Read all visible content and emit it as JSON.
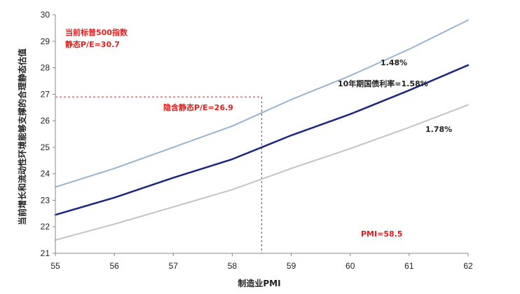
{
  "chart_data": {
    "type": "line",
    "xlabel": "制造业PMI",
    "ylabel": "当前增长和流动性环境能够支撑的合理静态估值",
    "xlim": [
      55,
      62
    ],
    "ylim": [
      21,
      30
    ],
    "x_ticks": [
      "55",
      "56",
      "57",
      "58",
      "59",
      "60",
      "61",
      "62"
    ],
    "y_ticks": [
      "21",
      "22",
      "23",
      "24",
      "25",
      "26",
      "27",
      "28",
      "29",
      "30"
    ],
    "grid": false,
    "series": [
      {
        "name": "1.48%",
        "color": "#9ab3d0",
        "points": [
          [
            55,
            23.5
          ],
          [
            56,
            24.2
          ],
          [
            57,
            25.0
          ],
          [
            58,
            25.8
          ],
          [
            59,
            26.8
          ],
          [
            60,
            27.7
          ],
          [
            61,
            28.7
          ],
          [
            62,
            29.8
          ]
        ]
      },
      {
        "name": "10年期国债利率=1.58%",
        "color": "#1d2680",
        "points": [
          [
            55,
            22.45
          ],
          [
            56,
            23.1
          ],
          [
            57,
            23.85
          ],
          [
            58,
            24.55
          ],
          [
            59,
            25.45
          ],
          [
            60,
            26.25
          ],
          [
            61,
            27.15
          ],
          [
            62,
            28.1
          ]
        ]
      },
      {
        "name": "1.78%",
        "color": "#c4c4c4",
        "points": [
          [
            55,
            21.5
          ],
          [
            56,
            22.1
          ],
          [
            57,
            22.75
          ],
          [
            58,
            23.4
          ],
          [
            59,
            24.2
          ],
          [
            60,
            24.95
          ],
          [
            61,
            25.75
          ],
          [
            62,
            26.6
          ]
        ]
      }
    ],
    "reference_lines": {
      "pmi_x": 58.5,
      "implied_pe_y": 26.9,
      "color": "#e02020"
    },
    "annotations": {
      "current_pe_line1": "当前标普500指数",
      "current_pe_line2": "静态P/E=30.7",
      "implied_pe": "隐含静态P/E=26.9",
      "pmi": "PMI=58.5"
    }
  }
}
